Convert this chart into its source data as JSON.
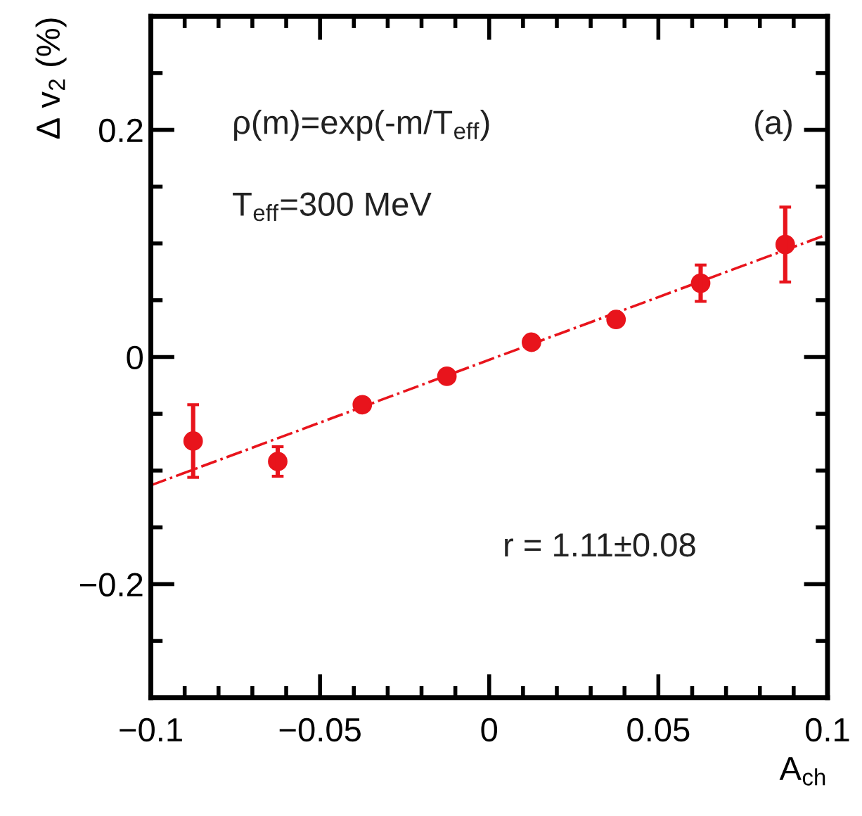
{
  "chart_data": {
    "type": "scatter",
    "xlabel": "A$_{ch}$",
    "ylabel": "Δ v$_{2}$ (%)",
    "annotations": [
      "ρ(m)=exp(-m/T$_{eff}$)",
      "T$_{eff}$=300 MeV",
      "(a)",
      "r = 1.11±0.08"
    ],
    "x": [
      -0.0875,
      -0.0625,
      -0.0375,
      -0.0125,
      0.0125,
      0.0375,
      0.0625,
      0.0875
    ],
    "series": [
      {
        "color": "#e8141c",
        "marker": "circle",
        "values": [
          -0.074,
          -0.092,
          -0.042,
          -0.017,
          0.013,
          0.033,
          0.065,
          0.099
        ],
        "errors": [
          0.032,
          0.013,
          null,
          null,
          null,
          null,
          0.016,
          0.033
        ]
      },
      {
        "type": "line",
        "color": "#e8141c",
        "line_style": "dashdot",
        "x": [
          -0.1,
          0.1
        ],
        "values": [
          -0.113,
          0.108
        ]
      }
    ],
    "xlim": [
      -0.1,
      0.1
    ],
    "xticks": [
      {
        "value": -0.1,
        "label": "−0.1"
      },
      {
        "value": -0.05,
        "label": "−0.05"
      },
      0,
      0.05,
      0.1
    ],
    "ylim": [
      -0.3,
      0.3
    ],
    "yticks": [
      {
        "value": -0.2,
        "label": "−0.2"
      },
      0,
      0.2
    ],
    "grid": false,
    "legend": false
  }
}
